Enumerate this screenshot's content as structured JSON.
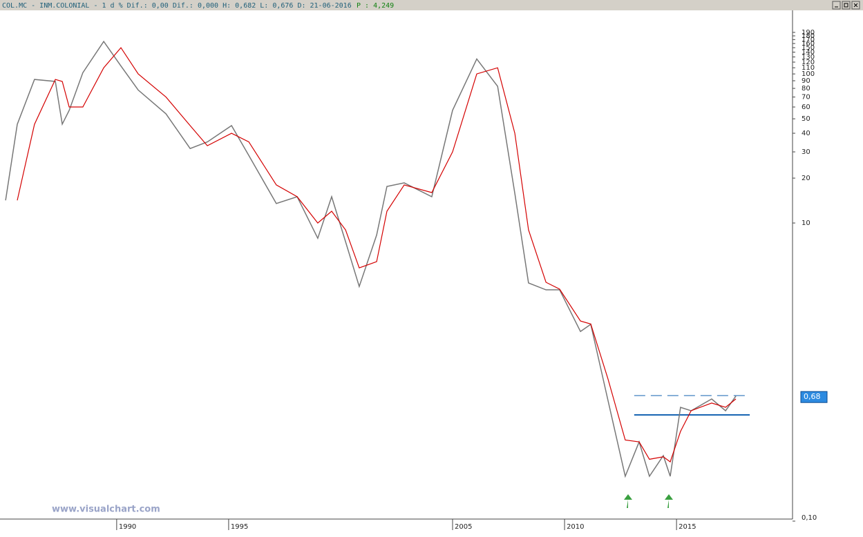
{
  "header": {
    "quote": "COL.MC - INM.COLONIAL -  1 d % Dif.: 0,00 Dif.: 0,000 H: 0,682 L: 0,676 D: 21-06-2016",
    "last": "P : 4,249"
  },
  "watermark": "www.visualchart.com",
  "chart_data": {
    "type": "line",
    "log_scale": true,
    "x": [
      1985.04,
      1985.56,
      1986.33,
      1987.26,
      1987.57,
      1987.88,
      1988.49,
      1989.42,
      1990.19,
      1990.96,
      1992.2,
      1993.28,
      1994.05,
      1995.13,
      1995.9,
      1997.13,
      1998.06,
      1998.98,
      1999.6,
      2000.22,
      2000.83,
      2001.61,
      2002.07,
      2002.84,
      2004.07,
      2005.0,
      2006.08,
      2007.01,
      2007.78,
      2008.39,
      2009.17,
      2009.78,
      2010.71,
      2011.17,
      2011.94,
      2012.71,
      2013.33,
      2013.79,
      2014.41,
      2014.72,
      2015.18,
      2015.65,
      2016.57,
      2017.19,
      2017.65
    ],
    "series": [
      {
        "color": "#777777",
        "values": [
          14.2,
          45.9,
          91.8,
          89,
          46,
          56.9,
          102,
          165,
          113,
          78,
          54,
          31.6,
          35,
          45,
          28.4,
          13.5,
          15,
          7.9,
          15,
          7.5,
          3.75,
          8.3,
          17.6,
          18.6,
          15,
          57,
          126,
          82.6,
          15.8,
          3.96,
          3.56,
          3.56,
          1.87,
          2.09,
          0.646,
          0.2,
          0.34,
          0.2,
          0.275,
          0.2,
          0.58,
          0.55,
          0.66,
          0.55,
          0.69
        ]
      },
      {
        "color": "#d40000",
        "values": [
          null,
          14.2,
          45.9,
          91.8,
          89,
          60,
          60,
          110,
          150,
          100,
          70,
          45,
          33,
          40,
          35,
          18,
          15,
          10,
          12,
          9,
          5,
          5.5,
          12,
          18,
          16,
          30,
          100,
          110,
          40,
          9,
          4,
          3.6,
          2.2,
          2.1,
          0.9,
          0.35,
          0.34,
          0.26,
          0.27,
          0.25,
          0.4,
          0.55,
          0.62,
          0.58,
          0.66
        ]
      }
    ],
    "levels": [
      {
        "value": 0.695,
        "style": "dashed",
        "from": 2013.11,
        "to": 2018.11
      },
      {
        "value": 0.516,
        "style": "solid",
        "from": 2013.11,
        "to": 2018.27
      }
    ],
    "price_tag": {
      "value": 0.68,
      "label": "0,68"
    },
    "xlim": [
      1984.79,
      2020.18
    ],
    "xticks": [
      1990,
      1995,
      2005,
      2010,
      2015
    ],
    "ylim": [
      0.1,
      267
    ],
    "yticks": [
      190,
      180,
      170,
      160,
      150,
      140,
      130,
      120,
      110,
      100,
      90,
      80,
      70,
      60,
      50,
      40,
      30,
      20,
      10,
      {
        "value": 0.1,
        "label": "0,10"
      }
    ]
  }
}
